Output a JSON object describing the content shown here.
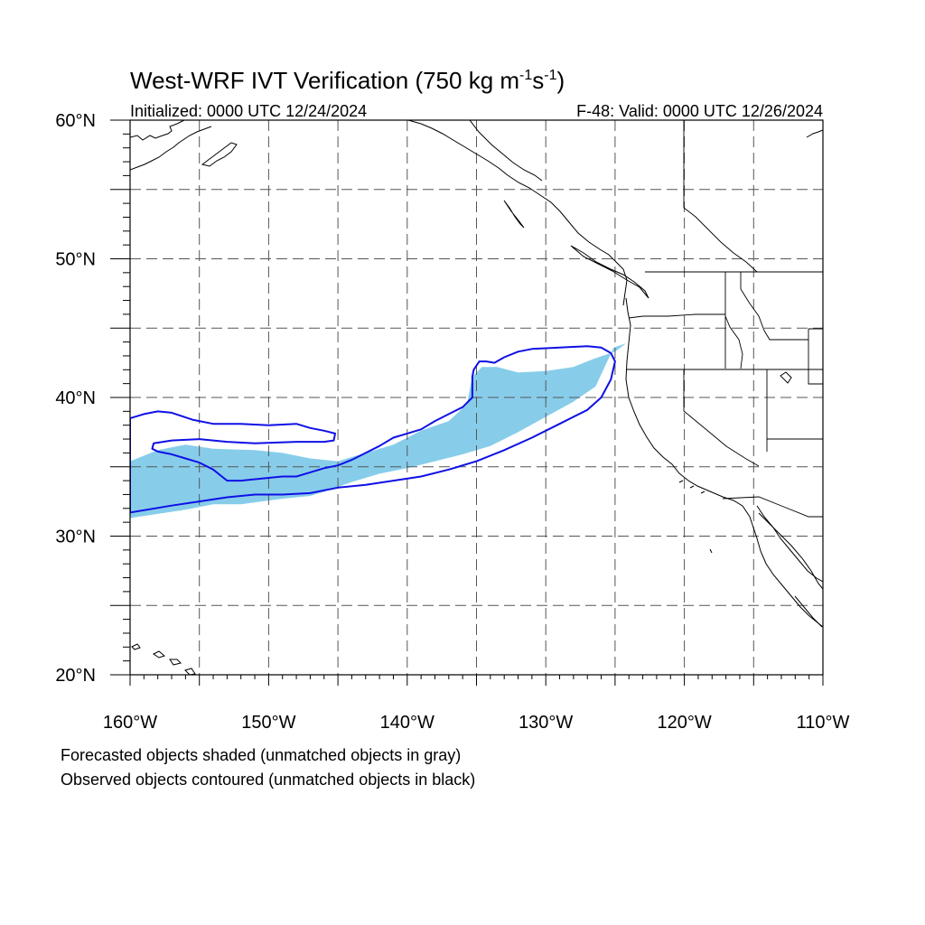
{
  "title": {
    "main": "West-WRF IVT Verification (750 kg m",
    "sup1": "-1",
    "mid": "s",
    "sup2": "-1",
    "close": ")"
  },
  "subtitle_left": "Initialized: 0000 UTC 12/24/2024",
  "subtitle_right": "F-48: Valid: 0000 UTC 12/26/2024",
  "map": {
    "projection": "cylindrical equidistant",
    "lon_range": [
      -160,
      -110
    ],
    "lat_range": [
      20,
      60
    ],
    "lat_labels": [
      {
        "lat": 60,
        "text": "60°N"
      },
      {
        "lat": 50,
        "text": "50°N"
      },
      {
        "lat": 40,
        "text": "40°N"
      },
      {
        "lat": 30,
        "text": "30°N"
      },
      {
        "lat": 20,
        "text": "20°N"
      }
    ],
    "lon_labels": [
      {
        "lon": -160,
        "text": "160°W"
      },
      {
        "lon": -150,
        "text": "150°W"
      },
      {
        "lon": -140,
        "text": "140°W"
      },
      {
        "lon": -130,
        "text": "130°W"
      },
      {
        "lon": -120,
        "text": "120°W"
      },
      {
        "lon": -110,
        "text": "110°W"
      }
    ],
    "grid": true,
    "grid_step_deg": 5,
    "colors": {
      "forecast_fill": "#87cdea",
      "observed_contour": "#1010e6",
      "coast": "#000000",
      "grid": "#555555"
    },
    "forecast_objects": [
      {
        "matched": true,
        "lonlat": [
          [
            -160,
            35.4
          ],
          [
            -158,
            36.2
          ],
          [
            -156,
            36.6
          ],
          [
            -154,
            36.3
          ],
          [
            -151,
            36.2
          ],
          [
            -149,
            36.0
          ],
          [
            -147,
            35.6
          ],
          [
            -145,
            35.4
          ],
          [
            -143,
            36.0
          ],
          [
            -141,
            36.6
          ],
          [
            -139,
            37.6
          ],
          [
            -137,
            38.3
          ],
          [
            -135.7,
            39.5
          ],
          [
            -135.3,
            41.5
          ],
          [
            -134.6,
            42.2
          ],
          [
            -133.5,
            42.2
          ],
          [
            -132,
            41.8
          ],
          [
            -130,
            41.9
          ],
          [
            -128,
            42.2
          ],
          [
            -126.5,
            42.8
          ],
          [
            -125,
            43.3
          ],
          [
            -124.2,
            43.9
          ],
          [
            -125.1,
            43.6
          ],
          [
            -126.4,
            40.8
          ],
          [
            -128,
            39.7
          ],
          [
            -130,
            38.6
          ],
          [
            -132,
            37.5
          ],
          [
            -134,
            36.5
          ],
          [
            -136,
            35.9
          ],
          [
            -138,
            35.4
          ],
          [
            -140,
            34.9
          ],
          [
            -142,
            34.5
          ],
          [
            -144,
            33.9
          ],
          [
            -146,
            33.2
          ],
          [
            -147,
            32.9
          ],
          [
            -149,
            32.7
          ],
          [
            -150.5,
            32.5
          ],
          [
            -152,
            32.3
          ],
          [
            -154,
            32.3
          ],
          [
            -156,
            31.9
          ],
          [
            -158,
            31.6
          ],
          [
            -160,
            31.3
          ],
          [
            -160,
            33.3
          ],
          [
            -158,
            33.5
          ],
          [
            -156,
            33.5
          ],
          [
            -154.6,
            33.2
          ],
          [
            -154.6,
            32.9
          ],
          [
            -156,
            32.8
          ],
          [
            -158,
            32.9
          ],
          [
            -160,
            32.8
          ]
        ]
      }
    ],
    "observed_objects": [
      {
        "matched": true,
        "lonlat": [
          [
            -160,
            31.7
          ],
          [
            -157,
            32.2
          ],
          [
            -155,
            32.5
          ],
          [
            -153,
            32.8
          ],
          [
            -151,
            33.0
          ],
          [
            -149,
            33.0
          ],
          [
            -147,
            33.1
          ],
          [
            -145,
            33.5
          ],
          [
            -143,
            33.7
          ],
          [
            -141,
            34.0
          ],
          [
            -139,
            34.3
          ],
          [
            -137,
            34.8
          ],
          [
            -135,
            35.4
          ],
          [
            -133,
            36.2
          ],
          [
            -131,
            37.1
          ],
          [
            -129,
            38.1
          ],
          [
            -127,
            39.1
          ],
          [
            -126,
            40.0
          ],
          [
            -125.3,
            41.3
          ],
          [
            -125.0,
            42.6
          ],
          [
            -125.3,
            43.2
          ],
          [
            -126,
            43.6
          ],
          [
            -127,
            43.7
          ],
          [
            -129,
            43.6
          ],
          [
            -131,
            43.5
          ],
          [
            -132,
            43.3
          ],
          [
            -133,
            42.9
          ],
          [
            -133.7,
            42.5
          ],
          [
            -134.3,
            42.6
          ],
          [
            -134.8,
            42.6
          ],
          [
            -135.2,
            42.0
          ],
          [
            -135.3,
            41.5
          ],
          [
            -135.3,
            40.0
          ],
          [
            -136,
            39.3
          ],
          [
            -137,
            38.8
          ],
          [
            -138,
            38.3
          ],
          [
            -139,
            37.7
          ],
          [
            -140,
            37.4
          ],
          [
            -141,
            37.1
          ],
          [
            -142,
            36.5
          ],
          [
            -143,
            36.0
          ],
          [
            -144,
            35.5
          ],
          [
            -145,
            35.1
          ],
          [
            -146,
            34.9
          ],
          [
            -147,
            34.6
          ],
          [
            -148,
            34.3
          ],
          [
            -149,
            34.3
          ],
          [
            -150,
            34.2
          ],
          [
            -152,
            34.0
          ],
          [
            -153,
            34.0
          ],
          [
            -154,
            34.8
          ],
          [
            -155,
            35.3
          ],
          [
            -156,
            35.6
          ],
          [
            -157,
            35.9
          ],
          [
            -158,
            36.1
          ],
          [
            -158.4,
            36.3
          ],
          [
            -158.3,
            36.7
          ],
          [
            -157,
            36.9
          ],
          [
            -155,
            37.0
          ],
          [
            -153,
            36.8
          ],
          [
            -151,
            36.7
          ],
          [
            -148,
            36.8
          ],
          [
            -146,
            36.8
          ],
          [
            -145.3,
            36.9
          ],
          [
            -145.2,
            37.4
          ],
          [
            -146,
            37.6
          ],
          [
            -147,
            37.8
          ],
          [
            -148,
            38.1
          ],
          [
            -150,
            38.0
          ],
          [
            -152,
            38.1
          ],
          [
            -154,
            38.1
          ],
          [
            -155.5,
            38.4
          ],
          [
            -157,
            38.9
          ],
          [
            -158,
            39.0
          ],
          [
            -159,
            38.8
          ],
          [
            -160,
            38.5
          ]
        ]
      }
    ]
  },
  "notes": [
    "Forecasted objects shaded (unmatched objects in gray)",
    "Observed objects contoured (unmatched objects in black)"
  ]
}
